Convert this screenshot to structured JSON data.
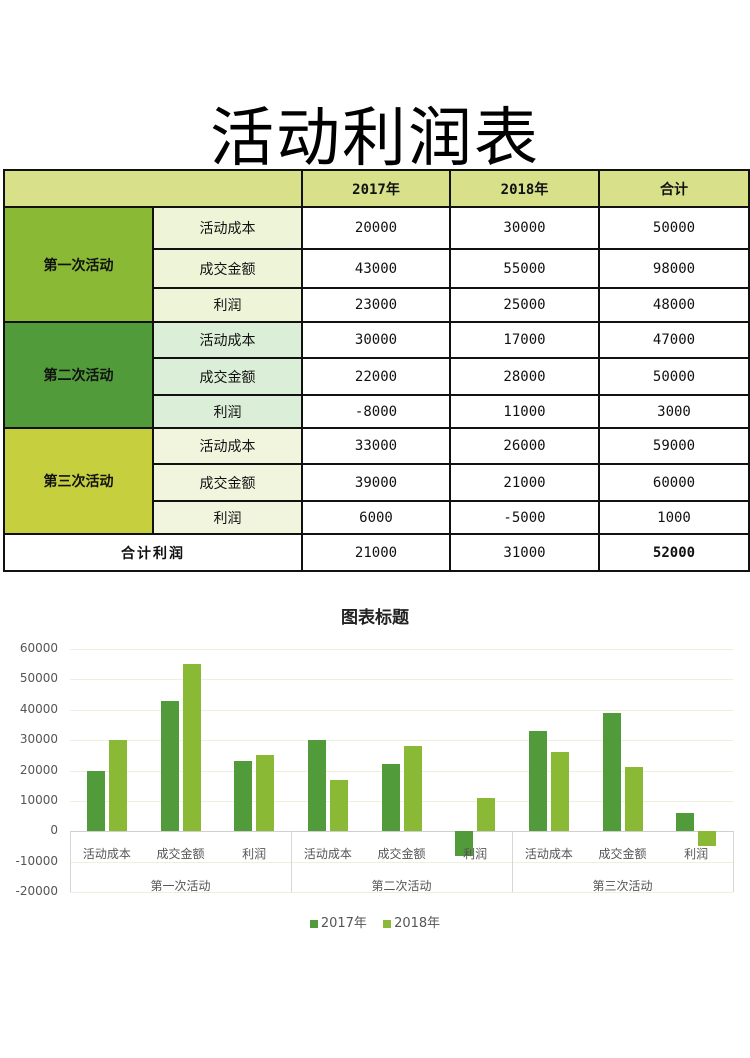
{
  "title": "活动利润表",
  "table": {
    "headers": [
      "",
      "2017年",
      "2018年",
      "合计"
    ],
    "groups": [
      {
        "name": "第一次活动",
        "color": "#8ab935",
        "rows": [
          {
            "label": "活动成本",
            "y2017": "20000",
            "y2018": "30000",
            "total": "50000"
          },
          {
            "label": "成交金额",
            "y2017": "43000",
            "y2018": "55000",
            "total": "98000"
          },
          {
            "label": "利润",
            "y2017": "23000",
            "y2018": "25000",
            "total": "48000"
          }
        ]
      },
      {
        "name": "第二次活动",
        "color": "#529b3a",
        "rows": [
          {
            "label": "活动成本",
            "y2017": "30000",
            "y2018": "17000",
            "total": "47000"
          },
          {
            "label": "成交金额",
            "y2017": "22000",
            "y2018": "28000",
            "total": "50000"
          },
          {
            "label": "利润",
            "y2017": "-8000",
            "y2018": "11000",
            "total": "3000"
          }
        ]
      },
      {
        "name": "第三次活动",
        "color": "#c6cf3e",
        "rows": [
          {
            "label": "活动成本",
            "y2017": "33000",
            "y2018": "26000",
            "total": "59000"
          },
          {
            "label": "成交金额",
            "y2017": "39000",
            "y2018": "21000",
            "total": "60000"
          },
          {
            "label": "利润",
            "y2017": "6000",
            "y2018": "-5000",
            "total": "1000"
          }
        ]
      }
    ],
    "total_row": {
      "label": "合计利润",
      "y2017": "21000",
      "y2018": "31000",
      "total": "52000"
    }
  },
  "chart_data": {
    "type": "bar",
    "title": "图表标题",
    "categories": [
      "活动成本",
      "成交金额",
      "利润",
      "活动成本",
      "成交金额",
      "利润",
      "活动成本",
      "成交金额",
      "利润"
    ],
    "category_groups": [
      {
        "name": "第一次活动",
        "span": 3
      },
      {
        "name": "第二次活动",
        "span": 3
      },
      {
        "name": "第三次活动",
        "span": 3
      }
    ],
    "series": [
      {
        "name": "2017年",
        "color": "#529b3a",
        "values": [
          20000,
          43000,
          23000,
          30000,
          22000,
          -8000,
          33000,
          39000,
          6000
        ]
      },
      {
        "name": "2018年",
        "color": "#8ab935",
        "values": [
          30000,
          55000,
          25000,
          17000,
          28000,
          11000,
          26000,
          21000,
          -5000
        ]
      }
    ],
    "yticks": [
      "60000",
      "50000",
      "40000",
      "30000",
      "20000",
      "10000",
      "0",
      "-10000",
      "-20000"
    ],
    "ylim": [
      -20000,
      60000
    ],
    "grid": true,
    "legend_position": "bottom",
    "xlabel": "",
    "ylabel": ""
  }
}
